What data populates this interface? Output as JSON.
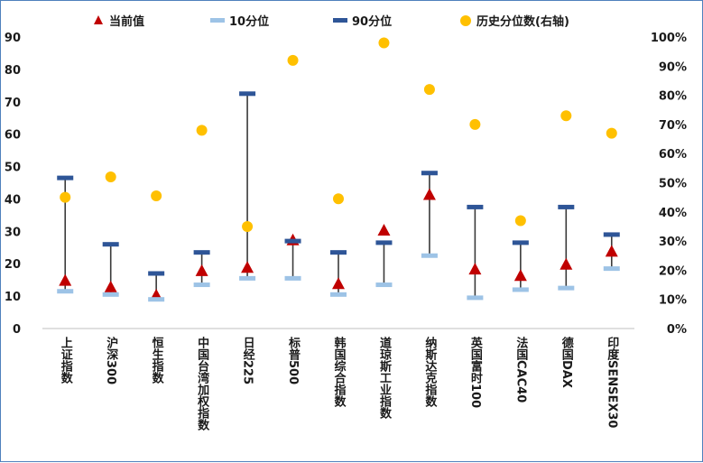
{
  "chart_data": {
    "type": "scatter",
    "title": "",
    "categories": [
      "上证指数",
      "沪深300",
      "恒生指数",
      "中国台湾加权指数",
      "日经225",
      "标普500",
      "韩国综合指数",
      "道琼斯工业指数",
      "纳斯达克指数",
      "英国富时100",
      "法国CAC40",
      "德国DAX",
      "印度SENSEX30"
    ],
    "series": [
      {
        "name": "当前值",
        "axis": "left",
        "marker": "triangle",
        "color": "#c00000",
        "values": [
          15,
          13,
          10.5,
          18,
          19,
          27.5,
          14,
          30.5,
          41.5,
          18.5,
          16.5,
          20,
          24
        ]
      },
      {
        "name": "10分位",
        "axis": "left",
        "marker": "dash",
        "color": "#9dc3e6",
        "values": [
          11.5,
          10.5,
          9,
          13.5,
          15.5,
          15.5,
          10.5,
          13.5,
          22.5,
          9.5,
          12,
          12.5,
          18.5
        ]
      },
      {
        "name": "90分位",
        "axis": "left",
        "marker": "dash",
        "color": "#2e5597",
        "values": [
          46.5,
          26,
          17,
          23.5,
          72.5,
          27,
          23.5,
          26.5,
          48,
          37.5,
          26.5,
          37.5,
          29
        ]
      },
      {
        "name": "历史分位数(右轴)",
        "axis": "right",
        "marker": "circle",
        "color": "#ffc000",
        "values": [
          0.45,
          0.52,
          0.455,
          0.68,
          0.35,
          0.92,
          0.445,
          0.98,
          0.82,
          0.7,
          0.37,
          0.73,
          0.67
        ]
      }
    ],
    "y_left": {
      "min": 0,
      "max": 90,
      "ticks": [
        0,
        10,
        20,
        30,
        40,
        50,
        60,
        70,
        80,
        90
      ],
      "tick_labels": [
        "0",
        "10",
        "20",
        "30",
        "40",
        "50",
        "60",
        "70",
        "80",
        "90"
      ]
    },
    "y_right": {
      "min": 0,
      "max": 1,
      "ticks": [
        0,
        0.1,
        0.2,
        0.3,
        0.4,
        0.5,
        0.6,
        0.7,
        0.8,
        0.9,
        1.0
      ],
      "tick_labels": [
        "0%",
        "10%",
        "20%",
        "30%",
        "40%",
        "50%",
        "60%",
        "70%",
        "80%",
        "90%",
        "100%"
      ]
    },
    "xlabel": "",
    "ylabel": "",
    "grid": false,
    "legend_position": "top",
    "range_line_color": "#3a3a3a"
  }
}
